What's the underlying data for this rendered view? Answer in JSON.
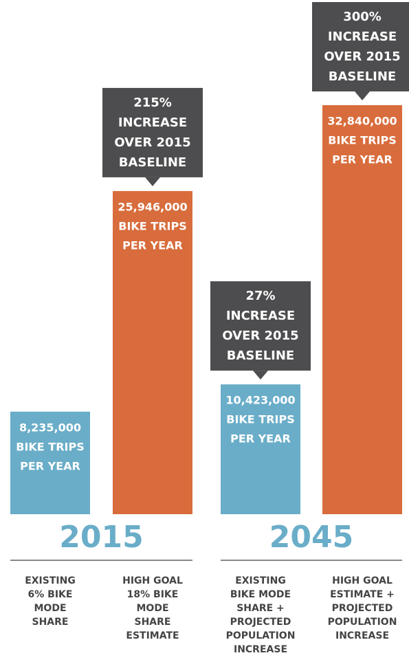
{
  "chart_data": {
    "type": "bar",
    "groups": [
      "2015",
      "2045"
    ],
    "categories": [
      [
        "EXISTING",
        "6% BIKE",
        "MODE",
        "SHARE"
      ],
      [
        "HIGH GOAL",
        "18% BIKE",
        "MODE",
        "SHARE",
        "ESTIMATE"
      ],
      [
        "EXISTING",
        "BIKE MODE",
        "SHARE +",
        "PROJECTED",
        "POPULATION",
        "INCREASE"
      ],
      [
        "HIGH GOAL",
        "ESTIMATE +",
        "PROJECTED",
        "POPULATION",
        "INCREASE"
      ]
    ],
    "values": [
      8235000,
      25946000,
      10423000,
      32840000
    ],
    "value_labels": [
      "8,235,000",
      "25,946,000",
      "10,423,000",
      "32,840,000"
    ],
    "unit_label": [
      "BIKE TRIPS",
      "PER YEAR"
    ],
    "colors": [
      "#6aadc8",
      "#d86c3c",
      "#6aadc8",
      "#d86c3c"
    ],
    "callouts": [
      null,
      [
        "215%",
        "INCREASE",
        "OVER 2015",
        "BASELINE"
      ],
      [
        "27%",
        "INCREASE",
        "OVER 2015",
        "BASELINE"
      ],
      [
        "300%",
        "INCREASE",
        "OVER 2015",
        "BASELINE"
      ]
    ],
    "callout_color": "#4d4d4f",
    "group_color": "#6aadc8"
  }
}
